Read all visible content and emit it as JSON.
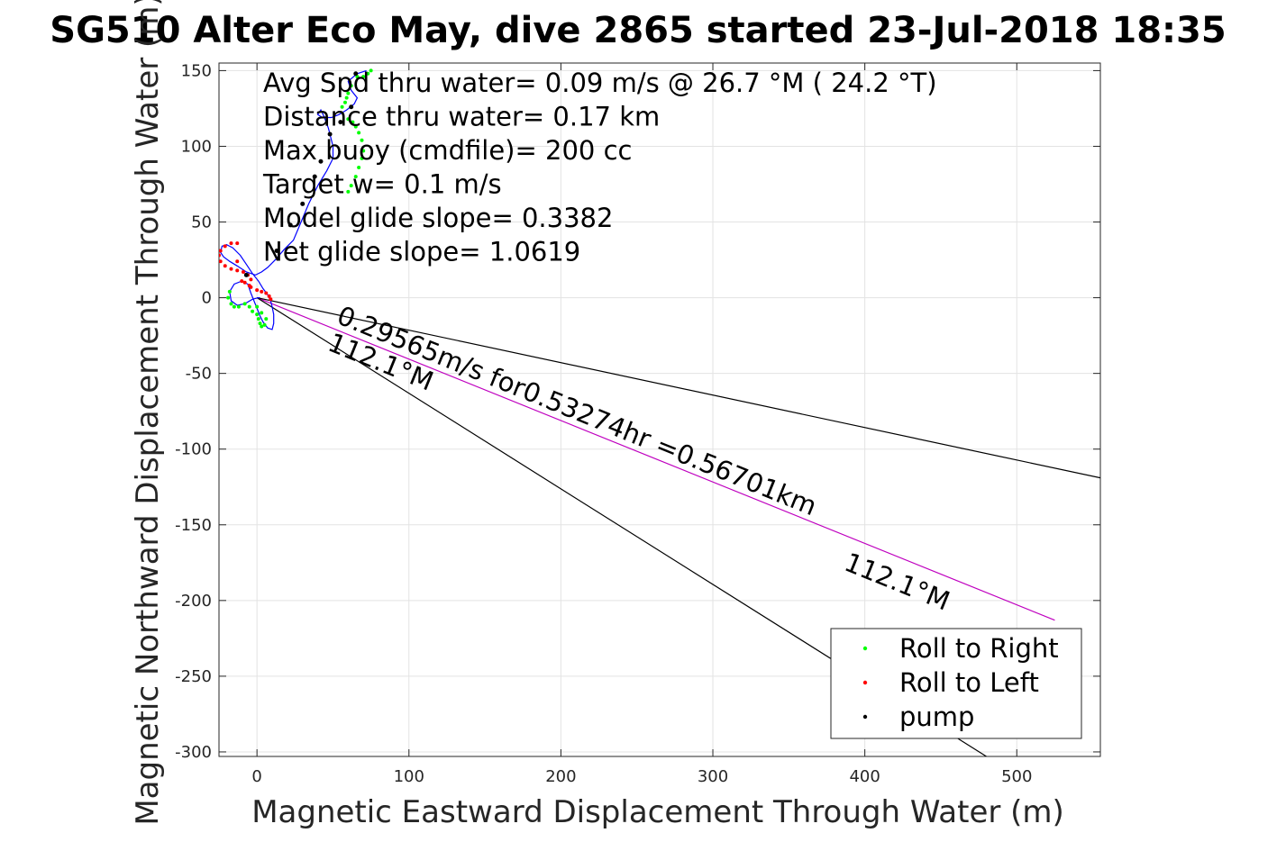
{
  "chart_data": {
    "type": "scatter",
    "title": "SG510 Alter Eco May, dive 2865 started 23-Jul-2018 18:35",
    "xlabel": "Magnetic Eastward Displacement Through Water (m)",
    "ylabel": "Magnetic Northward Displacement Through Water (m)",
    "xlim": [
      -25,
      555
    ],
    "ylim": [
      -303,
      155
    ],
    "xticks": [
      0,
      100,
      200,
      300,
      400,
      500
    ],
    "yticks": [
      150,
      100,
      50,
      0,
      -50,
      -100,
      -150,
      -200,
      -250,
      -300
    ],
    "grid": true,
    "legend_position": "bottom-right",
    "annotations": [
      "Avg Spd thru water=  0.09 m/s @  26.7 °M ( 24.2 °T)",
      "Distance thru water=  0.17 km",
      "Max buoy (cmdfile)= 200 cc",
      "Target w= 0.1 m/s",
      "Model glide slope= 0.3382",
      "Net glide slope= 1.0619"
    ],
    "line_labels": {
      "speed": "0.29565m/s for0.53274hr =0.56701km",
      "heading_left": "112.1°M",
      "heading_right": "112.1°M"
    },
    "lines": [
      {
        "name": "course",
        "color": "#bf00bf",
        "x": [
          0,
          525
        ],
        "y": [
          0,
          -213
        ]
      },
      {
        "name": "bound-upper",
        "color": "#000000",
        "x": [
          0,
          555
        ],
        "y": [
          0,
          -119
        ]
      },
      {
        "name": "bound-lower",
        "color": "#000000",
        "x": [
          0,
          480
        ],
        "y": [
          0,
          -303
        ]
      }
    ],
    "track": {
      "name": "track",
      "color": "#0000ff",
      "x": [
        72,
        66,
        60,
        62,
        66,
        64,
        59,
        54,
        49,
        43,
        40,
        42,
        44,
        47,
        50,
        50,
        46,
        40,
        34,
        29,
        24,
        18,
        12,
        7,
        3,
        -1,
        -7,
        -13,
        -18,
        -22,
        -24,
        -23,
        -20,
        -16,
        -11,
        -7,
        -3,
        1,
        4,
        7,
        9,
        10,
        11,
        11,
        10,
        7,
        4,
        2,
        0,
        -2,
        -4,
        -6,
        -10,
        -15,
        -18,
        -17,
        -13,
        -8,
        -3,
        1,
        2
      ],
      "y": [
        150,
        148,
        143,
        137,
        132,
        128,
        124,
        121,
        119,
        119,
        121,
        124,
        120,
        112,
        100,
        92,
        84,
        74,
        62,
        50,
        38,
        32,
        25,
        20,
        17,
        15,
        17,
        21,
        24,
        27,
        30,
        34,
        35,
        33,
        28,
        22,
        16,
        11,
        6,
        2,
        -2,
        -6,
        -11,
        -17,
        -21,
        -20,
        -16,
        -12,
        -7,
        -2,
        3,
        9,
        11,
        9,
        4,
        -2,
        -5,
        -4,
        -1,
        0,
        0
      ]
    },
    "series": [
      {
        "name": "Roll to Right",
        "color": "#00ff00",
        "x": [
          75,
          73,
          70,
          66,
          62,
          60,
          59,
          58,
          56,
          60,
          63,
          65,
          67,
          69,
          70,
          69,
          67,
          65,
          62,
          60,
          -18,
          -19,
          -17,
          -15,
          -12,
          -8,
          -5,
          -3,
          0,
          1,
          2,
          3,
          5,
          6,
          3,
          0
        ],
        "y": [
          150,
          148,
          146,
          146,
          140,
          135,
          132,
          129,
          126,
          118,
          116,
          113,
          109,
          104,
          97,
          92,
          86,
          80,
          74,
          70,
          4,
          0,
          -4,
          -6,
          -6,
          -4,
          -6,
          -9,
          -11,
          -14,
          -17,
          -19,
          -18,
          -14,
          -10,
          -6
        ]
      },
      {
        "name": "Roll to Left",
        "color": "#ff0000",
        "x": [
          -13,
          -17,
          -21,
          -24,
          -25,
          -24,
          -21,
          -17,
          -13,
          -9,
          -6,
          -4,
          -5,
          -10,
          -13,
          -8,
          -4,
          0,
          3,
          6,
          8,
          9
        ],
        "y": [
          36,
          36,
          34,
          31,
          28,
          24,
          21,
          19,
          18,
          17,
          15,
          12,
          8,
          11,
          24,
          10,
          7,
          5,
          4,
          3,
          1,
          -1
        ]
      },
      {
        "name": "pump",
        "color": "#000000",
        "x": [
          65,
          62,
          55,
          48,
          42,
          38,
          30,
          22,
          13,
          -7
        ],
        "y": [
          148,
          126,
          116,
          108,
          90,
          80,
          62,
          48,
          31,
          15
        ]
      }
    ]
  }
}
